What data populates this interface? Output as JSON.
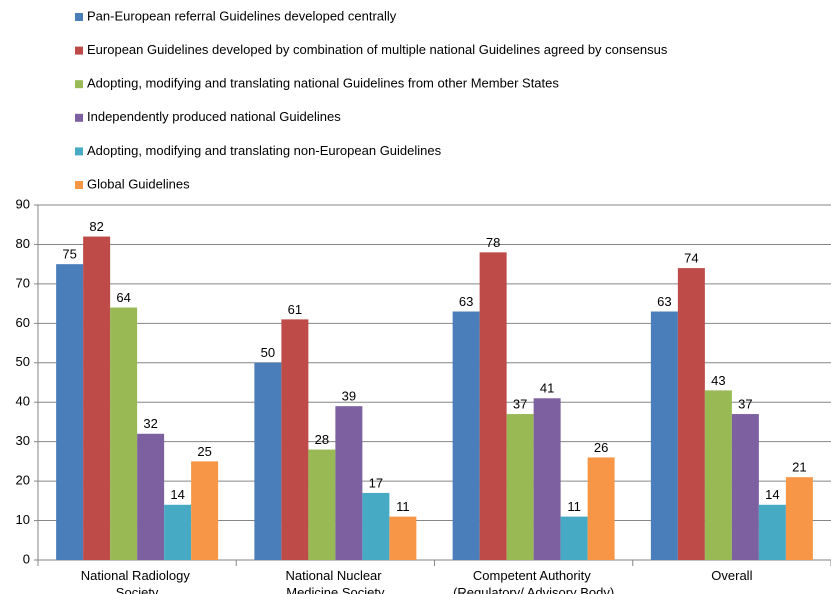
{
  "chart_data": {
    "type": "bar",
    "categories": [
      "National Radiology Society",
      "National Nuclear Medicine Society",
      "Competent Authority (Regulatory/ Advisory Body)",
      "Overall"
    ],
    "series": [
      {
        "name": "Pan-European referral Guidelines developed centrally",
        "color": "#4a7ebb",
        "values": [
          75,
          50,
          63,
          63
        ]
      },
      {
        "name": "European Guidelines developed by combination of multiple national Guidelines agreed by consensus",
        "color": "#be4b48",
        "values": [
          82,
          61,
          78,
          74
        ]
      },
      {
        "name": "Adopting, modifying and translating national Guidelines from other Member States",
        "color": "#98b954",
        "values": [
          64,
          28,
          37,
          43
        ]
      },
      {
        "name": "Independently produced national Guidelines",
        "color": "#7d60a0",
        "values": [
          32,
          39,
          41,
          37
        ]
      },
      {
        "name": "Adopting, modifying and translating non-European Guidelines",
        "color": "#46aac5",
        "values": [
          14,
          17,
          11,
          14
        ]
      },
      {
        "name": "Global Guidelines",
        "color": "#f79646",
        "values": [
          25,
          11,
          26,
          21
        ]
      }
    ],
    "ylim": [
      0,
      90
    ],
    "yticks": [
      0,
      10,
      20,
      30,
      40,
      50,
      60,
      70,
      80,
      90
    ],
    "grid": true,
    "legend": "top"
  }
}
